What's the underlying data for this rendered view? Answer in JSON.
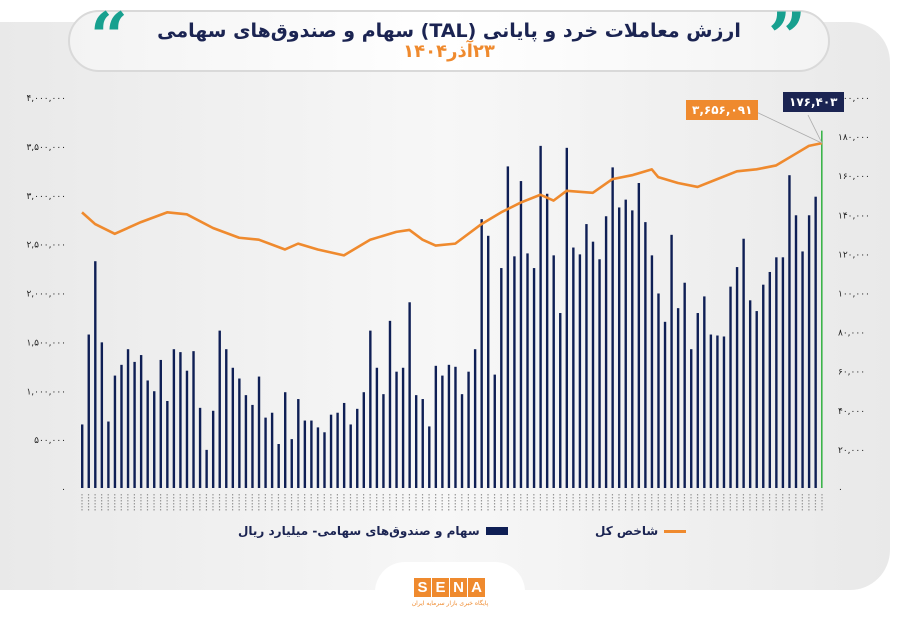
{
  "header": {
    "title": "ارزش معاملات خرد و پایانی (TAL) سهام و صندوق‌های سهامی",
    "subtitle": "۲۳آذر۱۴۰۴",
    "quote_open": "“",
    "quote_close": "”"
  },
  "colors": {
    "bars": "#0f1f55",
    "last_bar": "#3cb44b",
    "line": "#ef8a2e",
    "accent": "#17a08f"
  },
  "chart_data": {
    "type": "bar+line",
    "title": "ارزش معاملات خرد و پایانی (TAL) سهام و صندوق‌های سهامی",
    "subtitle": "۲۳آذر۱۴۰۴",
    "left_axis": {
      "ylim": [
        0,
        4000000
      ],
      "ticks": [
        "۰",
        "۵۰۰,۰۰۰",
        "۱,۰۰۰,۰۰۰",
        "۱,۵۰۰,۰۰۰",
        "۲,۰۰۰,۰۰۰",
        "۲,۵۰۰,۰۰۰",
        "۳,۰۰۰,۰۰۰",
        "۳,۵۰۰,۰۰۰",
        "۴,۰۰۰,۰۰۰"
      ]
    },
    "right_axis": {
      "ylim": [
        0,
        200000
      ],
      "ticks": [
        "۰",
        "۲۰,۰۰۰",
        "۴۰,۰۰۰",
        "۶۰,۰۰۰",
        "۸۰,۰۰۰",
        "۱۰۰,۰۰۰",
        "۱۲۰,۰۰۰",
        "۱۴۰,۰۰۰",
        "۱۶۰,۰۰۰",
        "۱۸۰,۰۰۰",
        "۲۰۰,۰۰۰"
      ]
    },
    "grid": false,
    "legend_placement": "bottom",
    "series": [
      {
        "name": "سهام و صندوق‌های سهامی- میلیارد ریال",
        "type": "bar",
        "axis": "left",
        "values": [
          650000,
          1570000,
          2320000,
          1490000,
          680000,
          1150000,
          1260000,
          1420000,
          1290000,
          1360000,
          1100000,
          990000,
          1310000,
          890000,
          1420000,
          1390000,
          1200000,
          1400000,
          820000,
          390000,
          790000,
          1610000,
          1420000,
          1230000,
          1120000,
          950000,
          850000,
          1140000,
          720000,
          770000,
          450000,
          980000,
          500000,
          910000,
          690000,
          690000,
          620000,
          570000,
          750000,
          770000,
          870000,
          650000,
          810000,
          980000,
          1610000,
          1230000,
          960000,
          1710000,
          1190000,
          1230000,
          1900000,
          950000,
          910000,
          630000,
          1250000,
          1150000,
          1260000,
          1240000,
          960000,
          1190000,
          1420000,
          2750000,
          2580000,
          1160000,
          2250000,
          3290000,
          2370000,
          3140000,
          2400000,
          2250000,
          3500000,
          3010000,
          2380000,
          1790000,
          3480000,
          2460000,
          2390000,
          2700000,
          2520000,
          2340000,
          2780000,
          3280000,
          2870000,
          2950000,
          2840000,
          3120000,
          2720000,
          2380000,
          1990000,
          1700000,
          2590000,
          1840000,
          2100000,
          1420000,
          1790000,
          1960000,
          1570000,
          1560000,
          1550000,
          2060000,
          2260000,
          2550000,
          1920000,
          1810000,
          2080000,
          2210000,
          2360000,
          2360000,
          3200000,
          2790000,
          2420000,
          2790000,
          2980000,
          3656091
        ]
      },
      {
        "name": "شاخص کل",
        "type": "line",
        "axis": "right",
        "points": [
          [
            0,
            141000
          ],
          [
            2,
            135000
          ],
          [
            5,
            130000
          ],
          [
            9,
            136000
          ],
          [
            13,
            141000
          ],
          [
            16,
            140000
          ],
          [
            20,
            133000
          ],
          [
            24,
            128000
          ],
          [
            27,
            127000
          ],
          [
            31,
            122000
          ],
          [
            33,
            125000
          ],
          [
            36,
            122000
          ],
          [
            40,
            119000
          ],
          [
            44,
            127000
          ],
          [
            48,
            131000
          ],
          [
            50,
            132000
          ],
          [
            52,
            127000
          ],
          [
            54,
            124000
          ],
          [
            57,
            125000
          ],
          [
            61,
            135000
          ],
          [
            64,
            141000
          ],
          [
            67,
            146000
          ],
          [
            70,
            150000
          ],
          [
            72,
            147000
          ],
          [
            74,
            152000
          ],
          [
            78,
            151000
          ],
          [
            81,
            158000
          ],
          [
            84,
            160000
          ],
          [
            87,
            163000
          ],
          [
            88,
            159000
          ],
          [
            91,
            156000
          ],
          [
            94,
            154000
          ],
          [
            97,
            158000
          ],
          [
            100,
            162000
          ],
          [
            103,
            163000
          ],
          [
            106,
            165000
          ],
          [
            109,
            171000
          ],
          [
            111,
            175000
          ],
          [
            113,
            176403
          ]
        ]
      }
    ],
    "annotations": {
      "orange_label": "۳,۶۵۶,۰۹۱",
      "navy_label": "۱۷۶,۴۰۳"
    }
  },
  "legend": {
    "bars": "سهام و صندوق‌های سهامی- میلیارد ریال",
    "line": "شاخص کل"
  },
  "footer": {
    "logo_letters": [
      "S",
      "E",
      "N",
      "A"
    ],
    "logo_sub": "پایگاه خبری بازار سرمایه ایران"
  }
}
